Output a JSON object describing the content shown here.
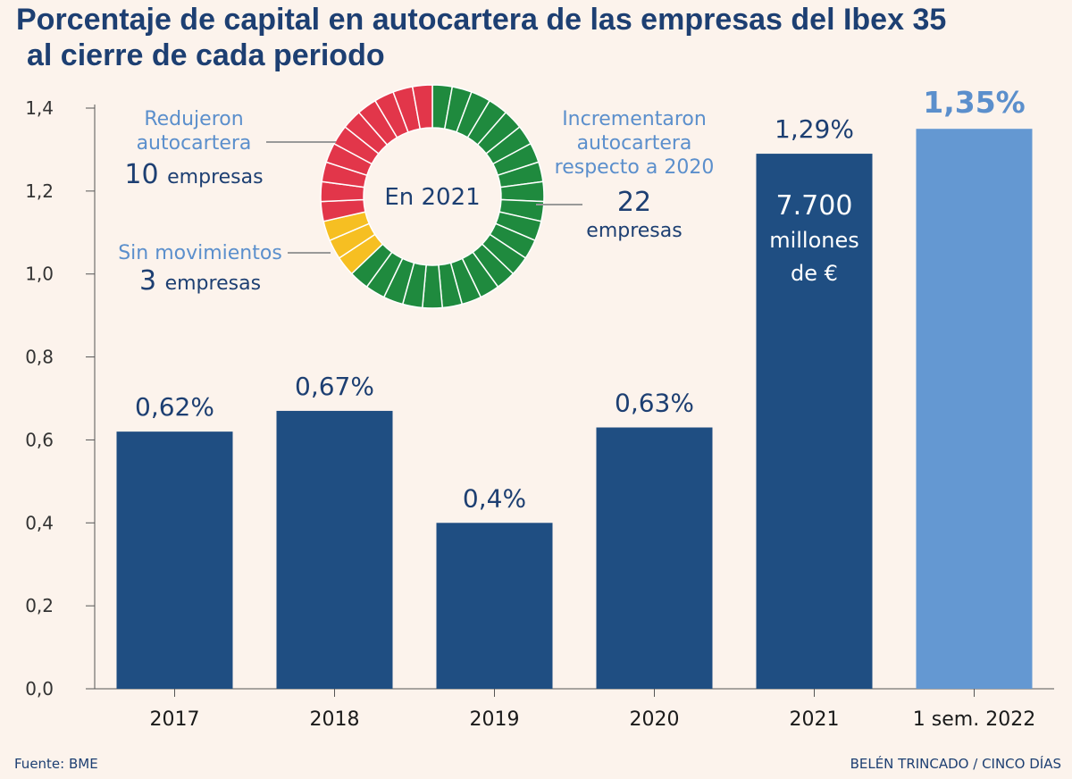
{
  "header": {
    "title_line1": "Porcentaje de capital en autocartera de las empresas del Ibex 35",
    "title_line2": "al cierre de cada periodo"
  },
  "footer": {
    "source": "Fuente: BME",
    "credit": "BELÉN TRINCADO / CINCO DÍAS"
  },
  "colors": {
    "background": "#fcf3ec",
    "bar": "#1f4e82",
    "bar_highlight": "#6498d2",
    "text_dark": "#1d3f72",
    "text_light": "#5b8fcc",
    "axis": "#555555",
    "green": "#1f8a3e",
    "red": "#e2364a",
    "yellow": "#f6bf22"
  },
  "chart_data": [
    {
      "type": "bar",
      "categories": [
        "2017",
        "2018",
        "2019",
        "2020",
        "2021",
        "1 sem. 2022"
      ],
      "values": [
        0.62,
        0.67,
        0.4,
        0.63,
        1.29,
        1.35
      ],
      "data_labels": [
        "0,62%",
        "0,67%",
        "0,4%",
        "0,63%",
        "1,29%",
        "1,35%"
      ],
      "highlight_index": 5,
      "ylim": [
        0,
        1.4
      ],
      "yticks": [
        0,
        0.2,
        0.4,
        0.6,
        0.8,
        1.0,
        1.2,
        1.4
      ],
      "ytick_labels": [
        "0,0",
        "0,2",
        "0,4",
        "0,6",
        "0,8",
        "1,0",
        "1,2",
        "1,4"
      ],
      "grid": false,
      "annotation": {
        "category": "2021",
        "lines": [
          "7.700",
          "millones",
          "de €"
        ]
      }
    },
    {
      "type": "pie",
      "center_label": "En 2021",
      "slices": [
        {
          "key": "increased",
          "label_lines": [
            "Incrementaron",
            "autocartera",
            "respecto a 2020"
          ],
          "count_lines": [
            "22",
            "empresas"
          ],
          "value": 22,
          "color": "#1f8a3e"
        },
        {
          "key": "none",
          "label_lines": [
            "Sin movimientos"
          ],
          "count_number": "3",
          "count_word": "empresas",
          "value": 3,
          "color": "#f6bf22"
        },
        {
          "key": "reduced",
          "label_lines": [
            "Redujeron",
            "autocartera"
          ],
          "count_number": "10",
          "count_word": "empresas",
          "value": 10,
          "color": "#e2364a"
        }
      ]
    }
  ]
}
